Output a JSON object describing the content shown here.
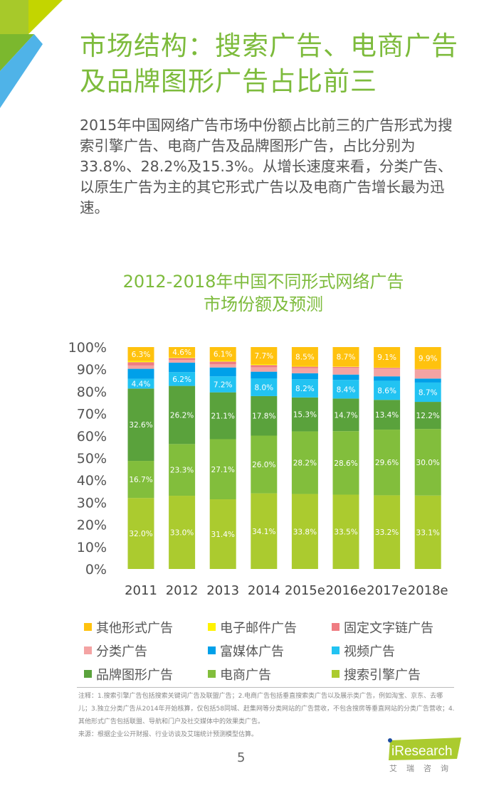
{
  "header": {
    "title": "市场结构：搜索广告、电商广告及品牌图形广告占比前三"
  },
  "intro": "2015年中国网络广告市场中份额占比前三的广告形式为搜索引擎广告、电商广告及品牌图形广告，占比分别为33.8%、28.2%及15.3%。从增长速度来看，分类广告、以原生广告为主的其它形式广告以及电商广告增长最为迅速。",
  "chart_data": {
    "type": "bar",
    "stacked": true,
    "title": "2012-2018年中国不同形式网络广告市场份额及预测",
    "xlabel": "",
    "ylabel": "",
    "ylim": [
      0,
      100
    ],
    "yticks": [
      "0%",
      "10%",
      "20%",
      "30%",
      "40%",
      "50%",
      "60%",
      "70%",
      "80%",
      "90%",
      "100%"
    ],
    "categories": [
      "2011",
      "2012",
      "2013",
      "2014",
      "2015e",
      "2016e",
      "2017e",
      "2018e"
    ],
    "legend_position": "bottom",
    "series": [
      {
        "name": "搜索引擎广告",
        "color": "#abcb2f",
        "labeled": true,
        "values": [
          32.0,
          33.0,
          31.4,
          34.1,
          33.8,
          33.5,
          33.2,
          33.1
        ]
      },
      {
        "name": "电商广告",
        "color": "#82be3c",
        "labeled": true,
        "values": [
          16.7,
          23.3,
          27.1,
          26.0,
          28.2,
          28.6,
          29.6,
          30.0
        ]
      },
      {
        "name": "品牌图形广告",
        "color": "#5aa23c",
        "labeled": true,
        "values": [
          32.6,
          26.2,
          21.1,
          17.8,
          15.3,
          14.7,
          13.4,
          12.2
        ]
      },
      {
        "name": "视频广告",
        "color": "#22c3f2",
        "labeled": true,
        "values": [
          4.4,
          6.2,
          7.2,
          8.0,
          8.2,
          8.4,
          8.6,
          8.7
        ]
      },
      {
        "name": "富媒体广告",
        "color": "#00a0e9",
        "labeled": false,
        "values": [
          4.5,
          4.3,
          4.0,
          3.0,
          2.7,
          2.4,
          2.0,
          1.8
        ]
      },
      {
        "name": "分类广告",
        "color": "#f4a3a3",
        "labeled": false,
        "values": [
          1.5,
          1.2,
          1.5,
          2.0,
          2.3,
          3.0,
          3.5,
          3.9
        ]
      },
      {
        "name": "固定文字链广告",
        "color": "#ef7c82",
        "labeled": false,
        "values": [
          1.5,
          0.9,
          1.2,
          1.0,
          0.7,
          0.5,
          0.4,
          0.3
        ]
      },
      {
        "name": "电子邮件广告",
        "color": "#fff200",
        "labeled": false,
        "values": [
          0.5,
          0.3,
          0.4,
          0.4,
          0.3,
          0.2,
          0.2,
          0.1
        ]
      },
      {
        "name": "其他形式广告",
        "color": "#ffc20e",
        "labeled": true,
        "values": [
          6.3,
          4.6,
          6.1,
          7.7,
          8.5,
          8.7,
          9.1,
          9.9
        ]
      }
    ],
    "legend_order": [
      "其他形式广告",
      "电子邮件广告",
      "固定文字链广告",
      "分类广告",
      "富媒体广告",
      "视频广告",
      "品牌图形广告",
      "电商广告",
      "搜索引擎广告"
    ]
  },
  "chart_title_lines": [
    "2012-2018年中国不同形式网络广告",
    "市场份额及预测"
  ],
  "notes": {
    "note": "注释：1.搜索引擎广告包括搜索关键词广告及联盟广告；2.电商广告包括垂直搜索类广告以及展示类广告，例如淘宝、京东、去哪儿；3.独立分类广告从2014年开始核算，仅包括58同城、赶集网等分类网站的广告营收，不包含搜房等垂直网站的分类广告营收；4.其他形式广告包括联盟、导航和门户及社交媒体中的效果类广告。",
    "source": "来源：根据企业公开财报、行业访谈及艾瑞统计预测模型估算。"
  },
  "footer": {
    "page": "5",
    "logo_text": "iResearch",
    "logo_sub": "艾瑞咨询"
  },
  "colors": {
    "accent": "#7dbb3c"
  }
}
